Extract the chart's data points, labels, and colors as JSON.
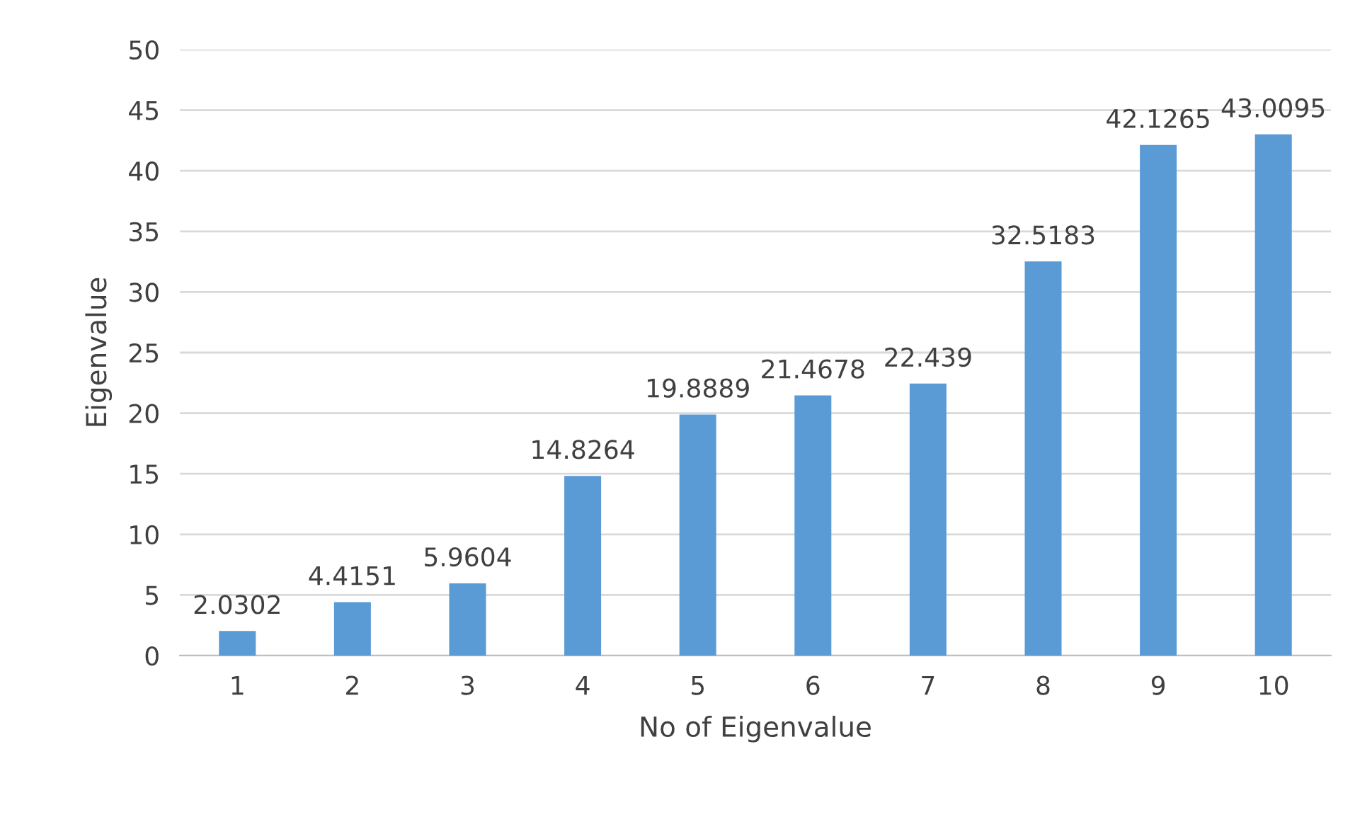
{
  "chart_data": {
    "type": "bar",
    "xlabel": "No of Eigenvalue",
    "ylabel": "Eigenvalue",
    "categories": [
      "1",
      "2",
      "3",
      "4",
      "5",
      "6",
      "7",
      "8",
      "9",
      "10"
    ],
    "values": [
      2.0302,
      4.4151,
      5.9604,
      14.8264,
      19.8889,
      21.4678,
      22.439,
      32.5183,
      42.1265,
      43.0095
    ],
    "color": "#5b9bd5",
    "ylim": [
      0,
      50
    ],
    "yticks": [
      0,
      5,
      10,
      15,
      20,
      25,
      30,
      35,
      40,
      45,
      50
    ],
    "grid": "y",
    "data_labels": true,
    "legend": false
  }
}
